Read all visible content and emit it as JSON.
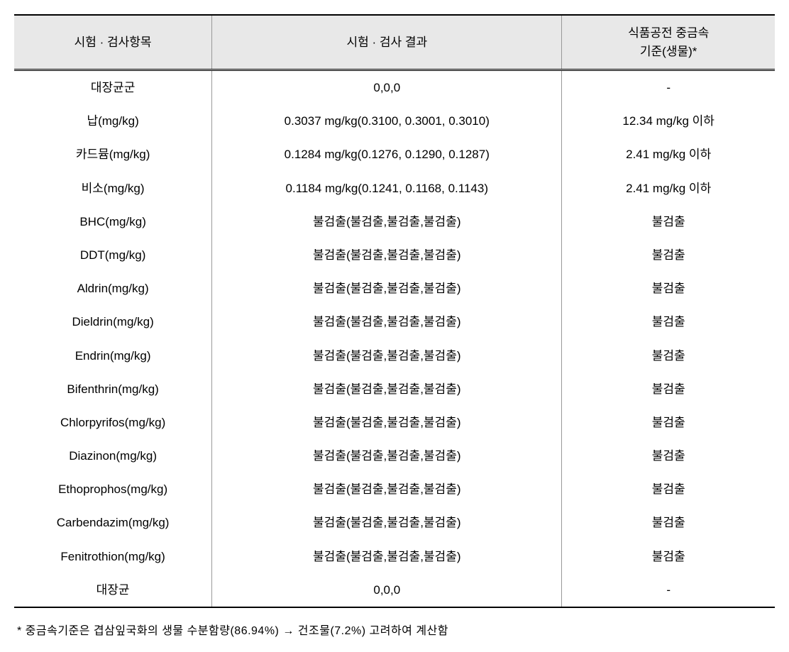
{
  "table": {
    "columns": [
      {
        "label": "시험 · 검사항목",
        "width": "26%",
        "align": "center"
      },
      {
        "label": "시험 · 검사 결과",
        "width": "46%",
        "align": "center"
      },
      {
        "label": "식품공전 중금속\n기준(생물)*",
        "width": "28%",
        "align": "center"
      }
    ],
    "rows": [
      {
        "item": "대장균군",
        "result": "0,0,0",
        "standard": "-"
      },
      {
        "item": "납(mg/kg)",
        "result": "0.3037 mg/kg(0.3100, 0.3001, 0.3010)",
        "standard": "12.34 mg/kg 이하"
      },
      {
        "item": "카드뮴(mg/kg)",
        "result": "0.1284 mg/kg(0.1276, 0.1290, 0.1287)",
        "standard": "2.41 mg/kg 이하"
      },
      {
        "item": "비소(mg/kg)",
        "result": "0.1184 mg/kg(0.1241, 0.1168, 0.1143)",
        "standard": "2.41 mg/kg 이하"
      },
      {
        "item": "BHC(mg/kg)",
        "result": "불검출(불검출,불검출,불검출)",
        "standard": "불검출"
      },
      {
        "item": "DDT(mg/kg)",
        "result": "불검출(불검출,불검출,불검출)",
        "standard": "불검출"
      },
      {
        "item": "Aldrin(mg/kg)",
        "result": "불검출(불검출,불검출,불검출)",
        "standard": "불검출"
      },
      {
        "item": "Dieldrin(mg/kg)",
        "result": "불검출(불검출,불검출,불검출)",
        "standard": "불검출"
      },
      {
        "item": "Endrin(mg/kg)",
        "result": "불검출(불검출,불검출,불검출)",
        "standard": "불검출"
      },
      {
        "item": "Bifenthrin(mg/kg)",
        "result": "불검출(불검출,불검출,불검출)",
        "standard": "불검출"
      },
      {
        "item": "Chlorpyrifos(mg/kg)",
        "result": "불검출(불검출,불검출,불검출)",
        "standard": "불검출"
      },
      {
        "item": "Diazinon(mg/kg)",
        "result": "불검출(불검출,불검출,불검출)",
        "standard": "불검출"
      },
      {
        "item": "Ethoprophos(mg/kg)",
        "result": "불검출(불검출,불검출,불검출)",
        "standard": "불검출"
      },
      {
        "item": "Carbendazim(mg/kg)",
        "result": "불검출(불검출,불검출,불검출)",
        "standard": "불검출"
      },
      {
        "item": "Fenitrothion(mg/kg)",
        "result": "불검출(불검출,불검출,불검출)",
        "standard": "불검출"
      },
      {
        "item": "대장균",
        "result": "0,0,0",
        "standard": "-"
      }
    ],
    "header_background": "#e8e8e8",
    "border_color_main": "#000000",
    "border_color_cell": "#999999",
    "font_size_body": 17,
    "font_size_header": 17
  },
  "footnote": "* 중금속기준은 겹삼잎국화의 생물 수분함량(86.94%) → 건조물(7.2%) 고려하여 계산함"
}
